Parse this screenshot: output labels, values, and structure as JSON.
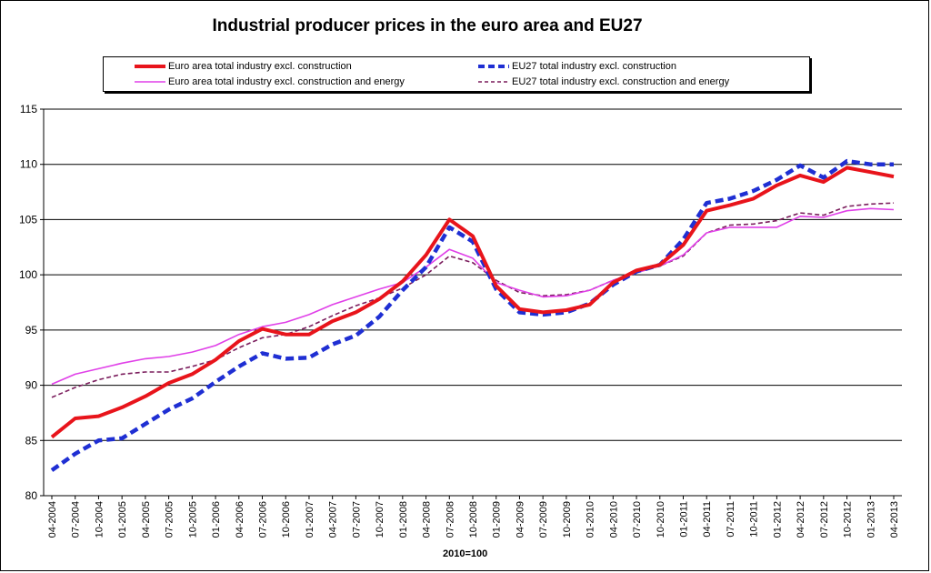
{
  "chart_data": {
    "type": "line",
    "title": "Industrial producer prices in the euro area and EU27",
    "xlabel": "2010=100",
    "ylabel": "",
    "ylim": [
      80,
      115
    ],
    "yticks": [
      80,
      85,
      90,
      95,
      100,
      105,
      110,
      115
    ],
    "grid": true,
    "legend_position": "top",
    "x_tick_labels": [
      "04-2004",
      "07-2004",
      "10-2004",
      "01-2005",
      "04-2005",
      "07-2005",
      "10-2005",
      "01-2006",
      "04-2006",
      "07-2006",
      "10-2006",
      "01-2007",
      "04-2007",
      "07-2007",
      "10-2007",
      "01-2008",
      "04-2008",
      "07-2008",
      "10-2008",
      "01-2009",
      "04-2009",
      "07-2009",
      "10-2009",
      "01-2010",
      "04-2010",
      "07-2010",
      "10-2010",
      "01-2011",
      "04-2011",
      "07-2011",
      "10-2011",
      "01-2012",
      "04-2012",
      "07-2012",
      "10-2012",
      "01-2013",
      "04-2013"
    ],
    "series": [
      {
        "name": "Euro area total industry excl. construction",
        "color": "#e8141b",
        "style": "solid-thick",
        "values": [
          85.3,
          87.0,
          87.2,
          88.0,
          89.0,
          90.2,
          91.0,
          92.3,
          94.0,
          95.1,
          94.6,
          94.6,
          95.8,
          96.6,
          97.8,
          99.4,
          101.8,
          105.0,
          103.5,
          99.0,
          96.9,
          96.6,
          96.8,
          97.3,
          99.3,
          100.4,
          100.9,
          102.7,
          105.8,
          106.3,
          106.9,
          108.1,
          109.0,
          108.4,
          109.7,
          109.3,
          108.9
        ]
      },
      {
        "name": "EU27 total industry excl. construction",
        "color": "#1f2fd3",
        "style": "dashed-thick",
        "values": [
          82.3,
          83.8,
          85.0,
          85.2,
          86.5,
          87.8,
          88.8,
          90.3,
          91.7,
          92.9,
          92.4,
          92.5,
          93.7,
          94.5,
          96.2,
          98.6,
          100.7,
          104.3,
          103.0,
          98.7,
          96.6,
          96.4,
          96.6,
          97.4,
          99.1,
          100.3,
          100.9,
          103.2,
          106.5,
          106.9,
          107.6,
          108.6,
          109.9,
          108.8,
          110.3,
          110.0,
          110.0
        ]
      },
      {
        "name": "Euro area total industry excl. construction and energy",
        "color": "#e040e8",
        "style": "solid-thin",
        "values": [
          90.1,
          91.0,
          91.5,
          92.0,
          92.4,
          92.6,
          93.0,
          93.6,
          94.6,
          95.3,
          95.7,
          96.4,
          97.3,
          98.0,
          98.7,
          99.3,
          100.7,
          102.3,
          101.5,
          99.3,
          98.6,
          98.0,
          98.1,
          98.6,
          99.5,
          100.2,
          100.8,
          101.8,
          103.8,
          104.3,
          104.3,
          104.3,
          105.3,
          105.2,
          105.8,
          106.0,
          105.9
        ]
      },
      {
        "name": "EU27 total industry excl. construction and energy",
        "color": "#7a1c5c",
        "style": "dashed-thin",
        "values": [
          88.9,
          89.8,
          90.5,
          91.0,
          91.2,
          91.2,
          91.7,
          92.3,
          93.4,
          94.3,
          94.6,
          95.3,
          96.3,
          97.2,
          97.9,
          98.8,
          100.0,
          101.7,
          101.1,
          99.5,
          98.4,
          98.1,
          98.2,
          98.6,
          99.5,
          100.2,
          100.8,
          101.7,
          103.8,
          104.5,
          104.6,
          104.9,
          105.6,
          105.4,
          106.2,
          106.4,
          106.5
        ]
      }
    ]
  }
}
